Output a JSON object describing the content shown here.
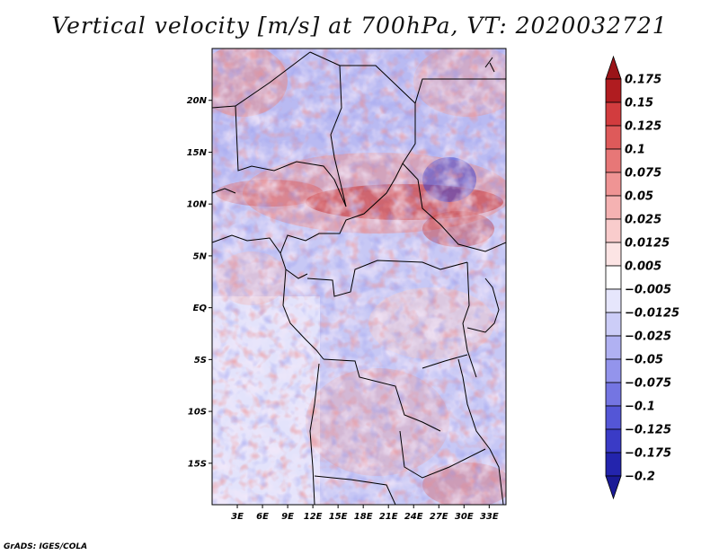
{
  "title": "Vertical velocity [m/s] at 700hPa, VT: 2020032721",
  "footer": "GrADS: IGES/COLA",
  "map": {
    "lon_range": [
      0,
      35
    ],
    "lat_range": [
      -19,
      25
    ],
    "lat_labels": [
      {
        "value": 20,
        "label": "20N"
      },
      {
        "value": 15,
        "label": "15N"
      },
      {
        "value": 10,
        "label": "10N"
      },
      {
        "value": 5,
        "label": "5N"
      },
      {
        "value": 0,
        "label": "EQ"
      },
      {
        "value": -5,
        "label": "5S"
      },
      {
        "value": -10,
        "label": "10S"
      },
      {
        "value": -15,
        "label": "15S"
      }
    ],
    "lon_labels": [
      {
        "value": 3,
        "label": "3E"
      },
      {
        "value": 6,
        "label": "6E"
      },
      {
        "value": 9,
        "label": "9E"
      },
      {
        "value": 12,
        "label": "12E"
      },
      {
        "value": 15,
        "label": "15E"
      },
      {
        "value": 18,
        "label": "18E"
      },
      {
        "value": 21,
        "label": "21E"
      },
      {
        "value": 24,
        "label": "24E"
      },
      {
        "value": 27,
        "label": "27E"
      },
      {
        "value": 30,
        "label": "30E"
      },
      {
        "value": 33,
        "label": "33E"
      }
    ]
  },
  "colorbar": {
    "levels": [
      {
        "label": "0.175",
        "color": "#b01c20"
      },
      {
        "label": "0.15",
        "color": "#c42c2f"
      },
      {
        "label": "0.125",
        "color": "#d23c3e"
      },
      {
        "label": "0.1",
        "color": "#de5a5a"
      },
      {
        "label": "0.075",
        "color": "#e77777"
      },
      {
        "label": "0.05",
        "color": "#ef9494"
      },
      {
        "label": "0.025",
        "color": "#f5b2b2"
      },
      {
        "label": "0.0125",
        "color": "#f9cccc"
      },
      {
        "label": "0.005",
        "color": "#fce4e4"
      },
      {
        "label": "−0.005",
        "color": "#ffffff"
      },
      {
        "label": "−0.0125",
        "color": "#e6e6fc"
      },
      {
        "label": "−0.025",
        "color": "#cccdf7"
      },
      {
        "label": "−0.05",
        "color": "#b0b1f2"
      },
      {
        "label": "−0.075",
        "color": "#9394ec"
      },
      {
        "label": "−0.1",
        "color": "#7475e2"
      },
      {
        "label": "−0.125",
        "color": "#5456d6"
      },
      {
        "label": "−0.175",
        "color": "#3a3bc6"
      },
      {
        "label": "−0.2",
        "color": "#2324ad"
      }
    ],
    "top_arrow_color": "#9a1418",
    "bottom_arrow_color": "#1a1a96"
  }
}
